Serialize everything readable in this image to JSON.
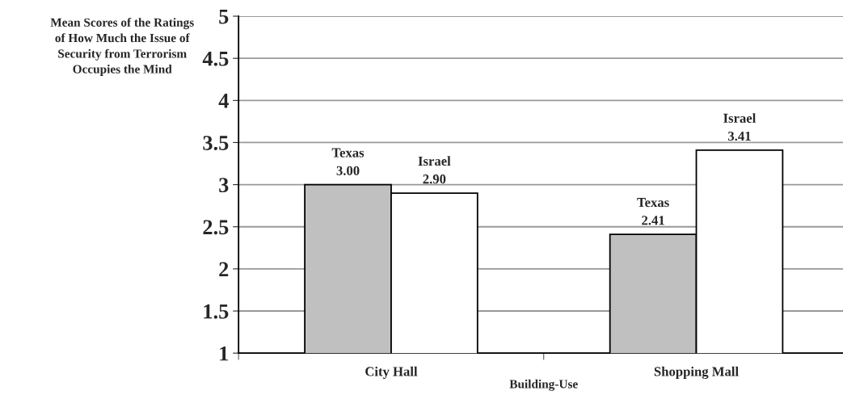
{
  "chart_data": {
    "type": "bar",
    "ylabel": "Mean Scores of the Ratings of How Much the Issue of Security from Terrorism Occupies the Mind",
    "xlabel": "Building-Use",
    "categories": [
      "City Hall",
      "Shopping Mall"
    ],
    "series": [
      {
        "name": "Texas",
        "color": "#c0c0c0",
        "values": [
          3.0,
          2.41
        ],
        "value_labels": [
          "3.00",
          "2.41"
        ]
      },
      {
        "name": "Israel",
        "color": "#ffffff",
        "values": [
          2.9,
          3.41
        ],
        "value_labels": [
          "2.90",
          "3.41"
        ]
      }
    ],
    "ylim": [
      1,
      5
    ],
    "yticks": [
      1,
      1.5,
      2,
      2.5,
      3,
      3.5,
      4,
      4.5,
      5
    ],
    "grid": "y",
    "legend": false
  }
}
